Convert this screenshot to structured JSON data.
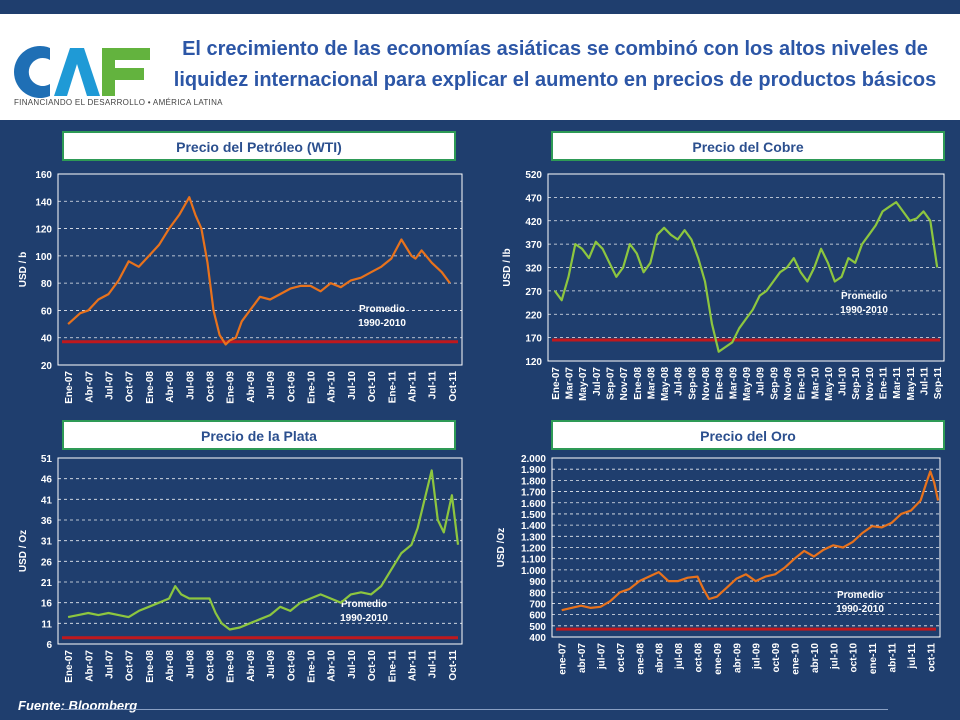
{
  "header": {
    "title_line1": "El crecimiento de las economías asiáticas se combinó con los altos niveles de",
    "title_line2": "liquidez internacional para explicar el aumento en precios de productos básicos",
    "logo_tagline": "FINANCIANDO EL DESARROLLO • AMÉRICA LATINA",
    "logo_letters": "CAF"
  },
  "footer": {
    "source": "Fuente: Bloomberg"
  },
  "colors": {
    "background": "#1f3e6e",
    "panel_border": "#2e9a56",
    "title": "#2c56a6",
    "orange": "#e8721c",
    "green": "#8dc63f",
    "average_line": "#c0181d"
  },
  "chart_data": [
    {
      "id": "oil",
      "type": "line",
      "title": "Precio del Petróleo (WTI)",
      "ylabel": "USD / b",
      "ylim": [
        20,
        160
      ],
      "yticks": [
        "20",
        "40",
        "60",
        "80",
        "100",
        "120",
        "140",
        "160"
      ],
      "xticks": [
        "Ene-07",
        "Abr-07",
        "Jul-07",
        "Oct-07",
        "Ene-08",
        "Abr-08",
        "Jul-08",
        "Oct-08",
        "Ene-09",
        "Abr-09",
        "Jul-09",
        "Oct-09",
        "Ene-10",
        "Abr-10",
        "Jul-10",
        "Oct-10",
        "Ene-11",
        "Abr-11",
        "Jul-11",
        "Oct-11"
      ],
      "average": 37,
      "average_label": [
        "Promedio",
        "1990-2010"
      ],
      "color": "#e8721c",
      "x": [
        0,
        0.6,
        1,
        1.5,
        2,
        2.5,
        3,
        3.5,
        4,
        4.5,
        5,
        5.5,
        6,
        6.3,
        6.6,
        6.9,
        7.2,
        7.5,
        7.8,
        8,
        8.3,
        8.6,
        9,
        9.5,
        10,
        10.5,
        11,
        11.5,
        12,
        12.5,
        13,
        13.5,
        14,
        14.5,
        15,
        15.5,
        16,
        16.5,
        17,
        17.2,
        17.5,
        18,
        18.5,
        18.9
      ],
      "y": [
        50,
        58,
        60,
        68,
        72,
        82,
        96,
        92,
        100,
        108,
        120,
        130,
        143,
        130,
        120,
        95,
        60,
        42,
        35,
        38,
        40,
        52,
        60,
        70,
        68,
        72,
        76,
        78,
        78,
        74,
        80,
        77,
        82,
        84,
        88,
        92,
        98,
        112,
        100,
        98,
        104,
        95,
        88,
        80
      ]
    },
    {
      "id": "copper",
      "type": "line",
      "title": "Precio del Cobre",
      "ylabel": "USD / lb",
      "ylim": [
        120,
        520
      ],
      "yticks": [
        "120",
        "170",
        "220",
        "270",
        "320",
        "370",
        "420",
        "470",
        "520"
      ],
      "xticks": [
        "Ene-07",
        "Mar-07",
        "May-07",
        "Jul-07",
        "Sep-07",
        "Nov-07",
        "Ene-08",
        "Mar-08",
        "May-08",
        "Jul-08",
        "Sep-08",
        "Nov-08",
        "Ene-09",
        "Mar-09",
        "May-09",
        "Jul-09",
        "Sep-09",
        "Nov-09",
        "Ene-10",
        "Mar-10",
        "May-10",
        "Jul-10",
        "Sep-10",
        "Nov-10",
        "Ene-11",
        "Mar-11",
        "May-11",
        "Jul-11",
        "Sep-11"
      ],
      "average": 165,
      "average_label": [
        "Promedio",
        "1990-2010"
      ],
      "color": "#8dc63f",
      "x": [
        0,
        0.5,
        1,
        1.5,
        2,
        2.5,
        3,
        3.5,
        4,
        4.5,
        5,
        5.5,
        6,
        6.5,
        7,
        7.5,
        8,
        8.5,
        9,
        9.5,
        10,
        10.5,
        11,
        11.5,
        12,
        12.5,
        13,
        13.5,
        14,
        14.5,
        15,
        15.5,
        16,
        16.5,
        17,
        17.5,
        18,
        18.5,
        19,
        19.5,
        20,
        20.5,
        21,
        21.5,
        22,
        22.5,
        23,
        23.5,
        24,
        24.5,
        25,
        25.5,
        26,
        26.5,
        27,
        27.5,
        28
      ],
      "y": [
        270,
        250,
        300,
        370,
        360,
        340,
        375,
        360,
        330,
        300,
        320,
        370,
        350,
        310,
        330,
        390,
        405,
        390,
        380,
        400,
        380,
        340,
        290,
        200,
        140,
        150,
        160,
        190,
        210,
        230,
        260,
        270,
        290,
        310,
        320,
        340,
        310,
        290,
        320,
        360,
        330,
        290,
        300,
        340,
        330,
        370,
        390,
        410,
        440,
        450,
        460,
        440,
        420,
        425,
        440,
        420,
        320
      ]
    },
    {
      "id": "silver",
      "type": "line",
      "title": "Precio de la Plata",
      "ylabel": "USD / Oz",
      "ylim": [
        6,
        51
      ],
      "yticks": [
        "6",
        "11",
        "16",
        "21",
        "26",
        "31",
        "36",
        "41",
        "46",
        "51"
      ],
      "xticks": [
        "Ene-07",
        "Abr-07",
        "Jul-07",
        "Oct-07",
        "Ene-08",
        "Abr-08",
        "Jul-08",
        "Oct-08",
        "Ene-09",
        "Abr-09",
        "Jul-09",
        "Oct-09",
        "Ene-10",
        "Abr-10",
        "Jul-10",
        "Oct-10",
        "Ene-11",
        "Abr-11",
        "Jul-11",
        "Oct-11"
      ],
      "average": 7.5,
      "average_label": [
        "Promedio",
        "1990-2010"
      ],
      "color": "#8dc63f",
      "x": [
        0,
        0.5,
        1,
        1.5,
        2,
        2.5,
        3,
        3.5,
        4,
        4.5,
        5,
        5.3,
        5.6,
        6,
        6.5,
        7,
        7.3,
        7.6,
        8,
        8.5,
        9,
        9.5,
        10,
        10.5,
        11,
        11.5,
        12,
        12.5,
        13,
        13.5,
        14,
        14.5,
        15,
        15.5,
        16,
        16.5,
        17,
        17.3,
        17.6,
        18,
        18.3,
        18.6,
        19,
        19.3
      ],
      "y": [
        12.5,
        13,
        13.5,
        13,
        13.5,
        13,
        12.5,
        14,
        15,
        16,
        17,
        20,
        18,
        17,
        17,
        17,
        13.5,
        11,
        9.5,
        10,
        11,
        12,
        13,
        15,
        14,
        16,
        17,
        18,
        17,
        16,
        18,
        18.5,
        18,
        20,
        24,
        28,
        30,
        34,
        40,
        48,
        36,
        33,
        42,
        30
      ]
    },
    {
      "id": "gold",
      "type": "line",
      "title": "Precio del Oro",
      "ylabel": "USD /Oz",
      "ylim": [
        400,
        2000
      ],
      "yticks": [
        "400",
        "500",
        "600",
        "700",
        "800",
        "900",
        "1.000",
        "1.100",
        "1.200",
        "1.300",
        "1.400",
        "1.500",
        "1.600",
        "1.700",
        "1.800",
        "1.900",
        "2.000"
      ],
      "xticks": [
        "ene-07",
        "abr-07",
        "jul-07",
        "oct-07",
        "ene-08",
        "abr-08",
        "jul-08",
        "oct-08",
        "ene-09",
        "abr-09",
        "jul-09",
        "oct-09",
        "ene-10",
        "abr-10",
        "jul-10",
        "oct-10",
        "ene-11",
        "abr-11",
        "jul-11",
        "oct-11"
      ],
      "average": 470,
      "average_label": [
        "Promedio",
        "1990-2010"
      ],
      "color": "#e8721c",
      "x": [
        0,
        0.5,
        1,
        1.5,
        2,
        2.5,
        3,
        3.5,
        4,
        4.5,
        5,
        5.5,
        6,
        6.5,
        7,
        7.3,
        7.6,
        8,
        8.5,
        9,
        9.5,
        10,
        10.5,
        11,
        11.5,
        12,
        12.5,
        13,
        13.5,
        14,
        14.5,
        15,
        15.5,
        16,
        16.5,
        17,
        17.5,
        18,
        18.5,
        18.8,
        19,
        19.2,
        19.4
      ],
      "y": [
        640,
        660,
        680,
        660,
        670,
        720,
        800,
        830,
        900,
        940,
        980,
        900,
        900,
        930,
        940,
        830,
        740,
        760,
        840,
        920,
        960,
        900,
        940,
        960,
        1020,
        1100,
        1170,
        1120,
        1180,
        1220,
        1200,
        1250,
        1330,
        1390,
        1380,
        1420,
        1500,
        1530,
        1620,
        1780,
        1880,
        1780,
        1620
      ]
    }
  ]
}
